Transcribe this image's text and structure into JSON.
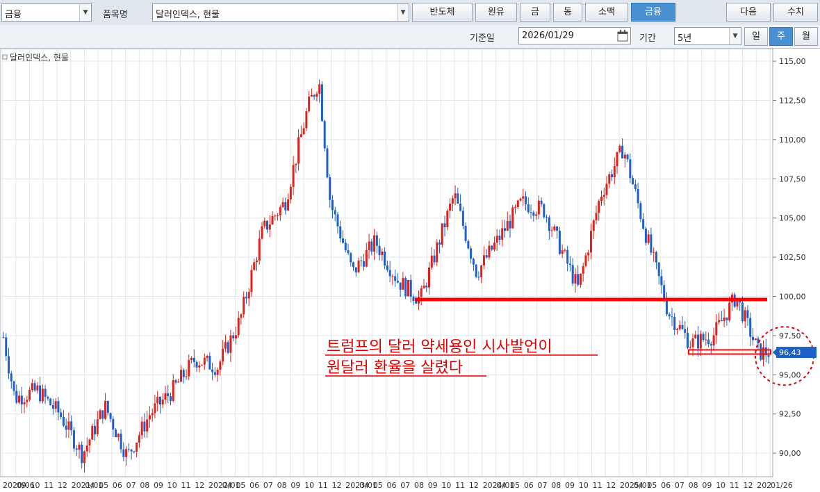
{
  "toolbar": {
    "category_value": "금융",
    "item_label": "품목명",
    "item_value": "달러인덱스, 현물",
    "buttons": [
      "반도체",
      "원유",
      "금",
      "동",
      "소맥",
      "금융"
    ],
    "active_button": "금융",
    "next_label": "다음",
    "figures_label": "수치"
  },
  "toolbar2": {
    "base_date_label": "기준일",
    "base_date_value": "2026/01/29",
    "period_label": "기간",
    "period_value": "5년",
    "interval_buttons": [
      "일",
      "주",
      "월"
    ],
    "active_interval": "주"
  },
  "chart_data": {
    "type": "candlestick",
    "title": "달러인덱스, 현물",
    "ylim": [
      88.5,
      115.8
    ],
    "y_ticks": [
      "115,00",
      "112,50",
      "110,00",
      "107,50",
      "105,00",
      "102,50",
      "100,00",
      "97,50",
      "95,00",
      "92,50",
      "90,00"
    ],
    "x_ticks": [
      "2020/06",
      "09",
      "10",
      "11",
      "12",
      "2021/01",
      "04",
      "05",
      "06",
      "07",
      "08",
      "09",
      "10",
      "11",
      "12",
      "2022/01",
      "04",
      "05",
      "06",
      "07",
      "08",
      "09",
      "10",
      "11",
      "12",
      "2023/01",
      "04",
      "05",
      "06",
      "07",
      "08",
      "09",
      "10",
      "11",
      "12",
      "2024/01",
      "04",
      "05",
      "06",
      "07",
      "08",
      "09",
      "10",
      "11",
      "12",
      "2025/01",
      "04",
      "05",
      "06",
      "07",
      "08",
      "09",
      "10",
      "11",
      "12",
      "202",
      "01/26"
    ],
    "current_value": "96,43",
    "close_series_approx": [
      [
        "2020/06",
        97.4
      ],
      [
        "2020/07",
        93.5
      ],
      [
        "2020/09",
        94.0
      ],
      [
        "2020/11",
        92.5
      ],
      [
        "2021/01",
        89.9
      ],
      [
        "2021/03",
        93.0
      ],
      [
        "2021/05",
        89.8
      ],
      [
        "2021/07",
        92.5
      ],
      [
        "2021/09",
        94.0
      ],
      [
        "2021/11",
        96.0
      ],
      [
        "2022/01",
        95.5
      ],
      [
        "2022/03",
        98.5
      ],
      [
        "2022/05",
        104.2
      ],
      [
        "2022/07",
        106.0
      ],
      [
        "2022/09",
        112.0
      ],
      [
        "2022/10",
        113.8
      ],
      [
        "2022/11",
        106.0
      ],
      [
        "2023/01",
        101.5
      ],
      [
        "2023/03",
        103.5
      ],
      [
        "2023/05",
        101.0
      ],
      [
        "2023/07",
        99.8
      ],
      [
        "2023/10",
        106.5
      ],
      [
        "2023/12",
        101.5
      ],
      [
        "2024/04",
        106.0
      ],
      [
        "2024/06",
        105.5
      ],
      [
        "2024/09",
        100.5
      ],
      [
        "2024/11",
        106.5
      ],
      [
        "2025/01",
        109.5
      ],
      [
        "2025/03",
        104.0
      ],
      [
        "2025/05",
        99.0
      ],
      [
        "2025/07",
        97.0
      ],
      [
        "2025/09",
        97.5
      ],
      [
        "2025/11",
        100.0
      ],
      [
        "2026/01",
        96.43
      ]
    ],
    "annotation_lines": [
      "트럼프의 달러 약세용인 시사발언이",
      "원달러 환율을 살렸다"
    ],
    "support_line_value": 99.8,
    "lower_line_value": 96.5
  }
}
